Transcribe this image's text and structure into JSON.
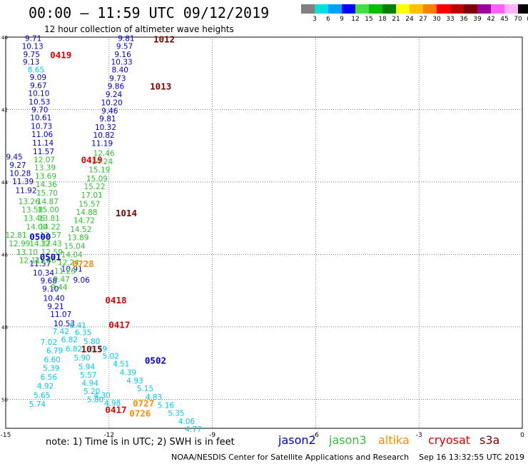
{
  "header": {
    "title": "00:00 – 11:59 UTC 09/12/2019",
    "subtitle": "12 hour collection of altimeter wave heights"
  },
  "color_scale": {
    "colors": [
      "#808080",
      "#00e0e0",
      "#00a0ff",
      "#0000ff",
      "#40e040",
      "#00c000",
      "#008000",
      "#ffff00",
      "#ffc000",
      "#ff8000",
      "#ff0000",
      "#c00000",
      "#800000",
      "#a000a0",
      "#ff60ff",
      "#ffb0ff",
      "#000000"
    ],
    "labels": [
      "3",
      "6",
      "9",
      "12",
      "15",
      "18",
      "21",
      "24",
      "27",
      "30",
      "33",
      "36",
      "39",
      "42",
      "45",
      "70",
      "(ft)"
    ]
  },
  "axes": {
    "lat_labels": [
      "40",
      "42",
      "44",
      "46",
      "48",
      "50"
    ],
    "lon_labels": [
      "-15",
      "-12",
      "-9",
      "-6",
      "-3",
      "0"
    ]
  },
  "chart_data": {
    "type": "scatter",
    "title": "12 hour collection of altimeter wave heights",
    "series": [
      {
        "name": "jason2",
        "color": "#0000cc",
        "points": [
          {
            "lon": -14.2,
            "lat": 40.03,
            "v": "9.71"
          },
          {
            "lon": -14.22,
            "lat": 40.25,
            "v": "10.13"
          },
          {
            "lon": -14.25,
            "lat": 40.47,
            "v": "9.75"
          },
          {
            "lon": -14.26,
            "lat": 40.68,
            "v": "9.13"
          },
          {
            "lon": -14.06,
            "lat": 41.1,
            "v": "9.09"
          },
          {
            "lon": -14.05,
            "lat": 41.33,
            "v": "9.67"
          },
          {
            "lon": -14.04,
            "lat": 41.55,
            "v": "10.10"
          },
          {
            "lon": -14.02,
            "lat": 41.78,
            "v": "10.53"
          },
          {
            "lon": -14.01,
            "lat": 42.0,
            "v": "9.70"
          },
          {
            "lon": -13.98,
            "lat": 42.22,
            "v": "10.61"
          },
          {
            "lon": -13.96,
            "lat": 42.45,
            "v": "10.73"
          },
          {
            "lon": -13.94,
            "lat": 42.68,
            "v": "11.06"
          },
          {
            "lon": -13.92,
            "lat": 42.92,
            "v": "11.14"
          },
          {
            "lon": -13.9,
            "lat": 43.15,
            "v": "11.57"
          },
          {
            "lon": -14.75,
            "lat": 43.3,
            "v": "9.45"
          },
          {
            "lon": -14.65,
            "lat": 43.53,
            "v": "9.27"
          },
          {
            "lon": -14.58,
            "lat": 43.75,
            "v": "10.28"
          },
          {
            "lon": -14.5,
            "lat": 43.98,
            "v": "11.39"
          },
          {
            "lon": -14.41,
            "lat": 44.23,
            "v": "11.92"
          },
          {
            "lon": -14.0,
            "lat": 46.25,
            "v": "11.57"
          },
          {
            "lon": -13.9,
            "lat": 46.5,
            "v": "10.34"
          },
          {
            "lon": -13.75,
            "lat": 46.72,
            "v": "9.68"
          },
          {
            "lon": -13.7,
            "lat": 46.95,
            "v": "9.10"
          },
          {
            "lon": -13.6,
            "lat": 47.2,
            "v": "10.40"
          },
          {
            "lon": -13.55,
            "lat": 47.43,
            "v": "9.21"
          },
          {
            "lon": -13.4,
            "lat": 47.65,
            "v": "11.07"
          },
          {
            "lon": -13.3,
            "lat": 47.9,
            "v": "10.53"
          },
          {
            "lon": -13.08,
            "lat": 46.4,
            "v": "10.91"
          },
          {
            "lon": -12.8,
            "lat": 46.7,
            "v": "9.06"
          },
          {
            "lon": -11.5,
            "lat": 40.03,
            "v": "9.81"
          },
          {
            "lon": -11.55,
            "lat": 40.25,
            "v": "9.57"
          },
          {
            "lon": -11.6,
            "lat": 40.47,
            "v": "9.16"
          },
          {
            "lon": -11.63,
            "lat": 40.68,
            "v": "10.33"
          },
          {
            "lon": -11.68,
            "lat": 40.9,
            "v": "8.40"
          },
          {
            "lon": -11.75,
            "lat": 41.13,
            "v": "9.73"
          },
          {
            "lon": -11.8,
            "lat": 41.35,
            "v": "9.86"
          },
          {
            "lon": -11.86,
            "lat": 41.58,
            "v": "9.24"
          },
          {
            "lon": -11.92,
            "lat": 41.8,
            "v": "10.20"
          },
          {
            "lon": -11.98,
            "lat": 42.03,
            "v": "9.46"
          },
          {
            "lon": -12.04,
            "lat": 42.25,
            "v": "9.81"
          },
          {
            "lon": -12.1,
            "lat": 42.48,
            "v": "10.32"
          },
          {
            "lon": -12.15,
            "lat": 42.7,
            "v": "10.82"
          },
          {
            "lon": -12.2,
            "lat": 42.93,
            "v": "11.19"
          }
        ]
      },
      {
        "name": "jason3",
        "color": "#30c030",
        "points": [
          {
            "lon": -13.88,
            "lat": 43.38,
            "v": "12.07"
          },
          {
            "lon": -13.86,
            "lat": 43.6,
            "v": "13.39"
          },
          {
            "lon": -13.84,
            "lat": 43.83,
            "v": "13.69"
          },
          {
            "lon": -13.82,
            "lat": 44.06,
            "v": "14.36"
          },
          {
            "lon": -13.8,
            "lat": 44.3,
            "v": "15.70"
          },
          {
            "lon": -13.78,
            "lat": 44.53,
            "v": "14.87"
          },
          {
            "lon": -13.76,
            "lat": 44.76,
            "v": "15.00"
          },
          {
            "lon": -13.74,
            "lat": 45.0,
            "v": "13.81"
          },
          {
            "lon": -13.72,
            "lat": 45.23,
            "v": "14.22"
          },
          {
            "lon": -13.7,
            "lat": 45.46,
            "v": "13.57"
          },
          {
            "lon": -13.68,
            "lat": 45.7,
            "v": "12.43"
          },
          {
            "lon": -13.66,
            "lat": 45.93,
            "v": "12.59"
          },
          {
            "lon": -14.32,
            "lat": 44.53,
            "v": "13.26"
          },
          {
            "lon": -14.23,
            "lat": 44.76,
            "v": "13.58"
          },
          {
            "lon": -14.17,
            "lat": 45.0,
            "v": "13.46"
          },
          {
            "lon": -14.1,
            "lat": 45.23,
            "v": "14.00"
          },
          {
            "lon": -14.0,
            "lat": 45.7,
            "v": "14.37"
          },
          {
            "lon": -14.7,
            "lat": 45.46,
            "v": "12.81"
          },
          {
            "lon": -14.6,
            "lat": 45.7,
            "v": "12.99"
          },
          {
            "lon": -14.38,
            "lat": 45.93,
            "v": "13.10"
          },
          {
            "lon": -14.3,
            "lat": 46.16,
            "v": "12.11"
          },
          {
            "lon": -13.85,
            "lat": 46.16,
            "v": "11.86"
          },
          {
            "lon": -12.15,
            "lat": 43.2,
            "v": "12.46"
          },
          {
            "lon": -12.2,
            "lat": 43.43,
            "v": "14.24"
          },
          {
            "lon": -12.28,
            "lat": 43.66,
            "v": "15.19"
          },
          {
            "lon": -12.35,
            "lat": 43.9,
            "v": "15.09"
          },
          {
            "lon": -12.42,
            "lat": 44.12,
            "v": "15.22"
          },
          {
            "lon": -12.5,
            "lat": 44.36,
            "v": "17.01"
          },
          {
            "lon": -12.57,
            "lat": 44.6,
            "v": "15.57"
          },
          {
            "lon": -12.65,
            "lat": 44.83,
            "v": "14.88"
          },
          {
            "lon": -12.72,
            "lat": 45.06,
            "v": "14.72"
          },
          {
            "lon": -12.82,
            "lat": 45.3,
            "v": "14.52"
          },
          {
            "lon": -12.9,
            "lat": 45.53,
            "v": "13.89"
          },
          {
            "lon": -13.0,
            "lat": 45.76,
            "v": "15.04"
          },
          {
            "lon": -13.08,
            "lat": 46.0,
            "v": "14.04"
          },
          {
            "lon": -13.18,
            "lat": 46.22,
            "v": "12.24"
          },
          {
            "lon": -13.28,
            "lat": 46.45,
            "v": "11.25"
          },
          {
            "lon": -13.38,
            "lat": 46.68,
            "v": "9.47"
          },
          {
            "lon": -13.45,
            "lat": 46.9,
            "v": "9.44"
          }
        ]
      },
      {
        "name": "altika",
        "color": "#ff8c00",
        "points": []
      },
      {
        "name": "cryosat",
        "color": "#e00000",
        "points": []
      },
      {
        "name": "s3a",
        "color": "#800000",
        "points": []
      },
      {
        "name": "",
        "color": "#00c8e8",
        "points": [
          {
            "lon": -14.12,
            "lat": 40.9,
            "v": "8.65"
          },
          {
            "lon": -13.75,
            "lat": 48.42,
            "v": "7.02"
          },
          {
            "lon": -13.58,
            "lat": 48.65,
            "v": "6.79"
          },
          {
            "lon": -13.65,
            "lat": 48.9,
            "v": "6.60"
          },
          {
            "lon": -13.68,
            "lat": 49.13,
            "v": "5.39"
          },
          {
            "lon": -13.75,
            "lat": 49.38,
            "v": "6.56"
          },
          {
            "lon": -13.85,
            "lat": 49.63,
            "v": "4.92"
          },
          {
            "lon": -13.95,
            "lat": 49.88,
            "v": "5.65"
          },
          {
            "lon": -14.08,
            "lat": 50.13,
            "v": "5.74"
          },
          {
            "lon": -13.4,
            "lat": 48.12,
            "v": "7.42"
          },
          {
            "lon": -13.15,
            "lat": 48.35,
            "v": "6.82"
          },
          {
            "lon": -13.02,
            "lat": 48.6,
            "v": "6.82"
          },
          {
            "lon": -12.78,
            "lat": 48.85,
            "v": "5.90"
          },
          {
            "lon": -12.65,
            "lat": 49.1,
            "v": "5.94"
          },
          {
            "lon": -12.6,
            "lat": 49.32,
            "v": "5.57"
          },
          {
            "lon": -12.55,
            "lat": 49.55,
            "v": "4.94"
          },
          {
            "lon": -12.5,
            "lat": 49.78,
            "v": "5.20"
          },
          {
            "lon": -12.4,
            "lat": 50.0,
            "v": "5.80"
          },
          {
            "lon": -12.2,
            "lat": 49.88,
            "v": "4.30"
          },
          {
            "lon": -11.9,
            "lat": 50.1,
            "v": "4.98"
          },
          {
            "lon": -12.9,
            "lat": 47.95,
            "v": "6.41"
          },
          {
            "lon": -12.75,
            "lat": 48.15,
            "v": "6.35"
          },
          {
            "lon": -12.5,
            "lat": 48.4,
            "v": "5.80"
          },
          {
            "lon": -12.3,
            "lat": 48.6,
            "v": "5.79"
          },
          {
            "lon": -11.95,
            "lat": 48.8,
            "v": "5.02"
          },
          {
            "lon": -11.65,
            "lat": 49.02,
            "v": "4.51"
          },
          {
            "lon": -11.45,
            "lat": 49.25,
            "v": "4.39"
          },
          {
            "lon": -11.25,
            "lat": 49.48,
            "v": "4.93"
          },
          {
            "lon": -10.95,
            "lat": 49.7,
            "v": "5.15"
          },
          {
            "lon": -10.7,
            "lat": 49.93,
            "v": "4.83"
          },
          {
            "lon": -10.35,
            "lat": 50.16,
            "v": "5.16"
          },
          {
            "lon": -10.05,
            "lat": 50.38,
            "v": "5.35"
          },
          {
            "lon": -9.75,
            "lat": 50.6,
            "v": "4.06"
          },
          {
            "lon": -9.55,
            "lat": 50.82,
            "v": "4.77"
          }
        ]
      }
    ],
    "id_labels": [
      {
        "text": "0419",
        "lon": -13.4,
        "lat": 40.48,
        "color": "#e00000"
      },
      {
        "text": "1012",
        "lon": -10.4,
        "lat": 40.05,
        "color": "#800000"
      },
      {
        "text": "1013",
        "lon": -10.5,
        "lat": 41.35,
        "color": "#800000"
      },
      {
        "text": "0419",
        "lon": -12.5,
        "lat": 43.38,
        "color": "#e00000"
      },
      {
        "text": "1014",
        "lon": -11.5,
        "lat": 44.85,
        "color": "#800000"
      },
      {
        "text": "0500",
        "lon": -14.0,
        "lat": 45.5,
        "color": "#0000cc"
      },
      {
        "text": "0501",
        "lon": -13.7,
        "lat": 46.06,
        "color": "#0000cc"
      },
      {
        "text": "0728",
        "lon": -12.75,
        "lat": 46.25,
        "color": "#ff8c00"
      },
      {
        "text": "0418",
        "lon": -11.8,
        "lat": 47.25,
        "color": "#e00000"
      },
      {
        "text": "0417",
        "lon": -11.7,
        "lat": 47.93,
        "color": "#e00000"
      },
      {
        "text": "1015",
        "lon": -12.5,
        "lat": 48.6,
        "color": "#800000"
      },
      {
        "text": "0502",
        "lon": -10.65,
        "lat": 48.92,
        "color": "#0000cc"
      },
      {
        "text": "0727",
        "lon": -11.0,
        "lat": 50.1,
        "color": "#ff8c00"
      },
      {
        "text": "0417",
        "lon": -11.8,
        "lat": 50.28,
        "color": "#e00000"
      },
      {
        "text": "0726",
        "lon": -11.1,
        "lat": 50.38,
        "color": "#ff8c00"
      }
    ]
  },
  "footer": {
    "note": "note: 1) Time is in UTC; 2) SWH is in feet",
    "satellites": [
      {
        "label": "jason2",
        "color": "#0000cc"
      },
      {
        "label": "jason3",
        "color": "#30c030"
      },
      {
        "label": "altika",
        "color": "#ff8c00"
      },
      {
        "label": "cryosat",
        "color": "#e00000"
      },
      {
        "label": "s3a",
        "color": "#800000"
      }
    ],
    "credit": "NOAA/NESDIS Center for Satellite Applications and Research",
    "timestamp": "Sep 16 13:32:55 UTC 2019"
  }
}
